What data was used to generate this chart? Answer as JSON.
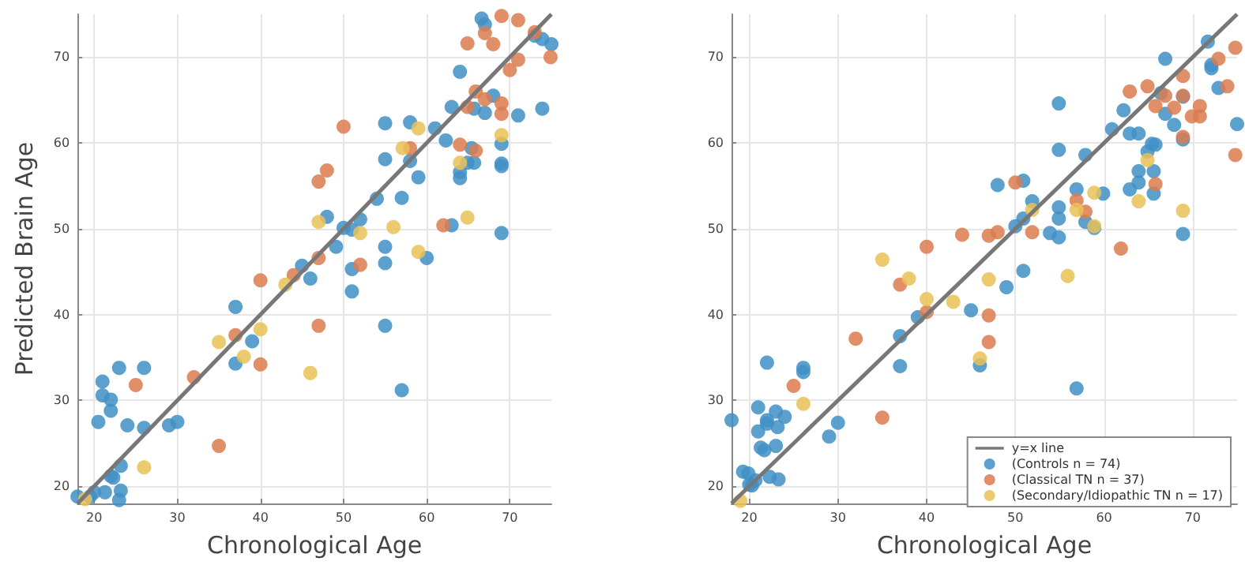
{
  "chart_data": [
    {
      "type": "scatter",
      "xlabel": "Chronological Age",
      "ylabel": "Predicted Brain Age",
      "xlim": [
        18,
        75
      ],
      "ylim": [
        18,
        75
      ],
      "xticks": [
        20,
        30,
        40,
        50,
        60,
        70
      ],
      "yticks": [
        20,
        30,
        40,
        50,
        60,
        70
      ],
      "grid": true,
      "legend": false,
      "marker": "circle",
      "series": [
        {
          "type": "line",
          "color": "#777777",
          "line_style": "solid",
          "marker": "none",
          "x": [
            18,
            75
          ],
          "values": [
            18,
            75
          ]
        },
        {
          "color": "#3f8fc5",
          "x": [
            66.6,
            67.0,
            73.0,
            73.9,
            75.0,
            64.0,
            63.0,
            65.7,
            67.0,
            68.0,
            71.0,
            73.9,
            55.0,
            58.0,
            61.0,
            62.3,
            69.0,
            55.0,
            58.0,
            64.9,
            65.7,
            69.0,
            69.0,
            65.4,
            64.0,
            64.0,
            59.0,
            57.0,
            54.0,
            48.0,
            50.0,
            51.0,
            52.0,
            63.0,
            69.0,
            49.1,
            55.0,
            60.0,
            55.0,
            51.0,
            45.0,
            46.0,
            51.0,
            55.0,
            57.0,
            37.0,
            39.0,
            37.0,
            23.0,
            26.0,
            21.0,
            21.0,
            22.0,
            22.0,
            20.5,
            24.0,
            26.0,
            29.0,
            30.0,
            23.2,
            22.0,
            22.3,
            21.3,
            23.2,
            20.0,
            18.0,
            19.5,
            23.0
          ],
          "values": [
            74.5,
            73.8,
            72.5,
            72.1,
            71.5,
            68.3,
            64.2,
            64.0,
            63.5,
            65.5,
            63.2,
            64.0,
            62.3,
            62.4,
            61.7,
            60.3,
            59.9,
            58.1,
            57.9,
            57.7,
            57.7,
            57.6,
            57.3,
            59.4,
            56.6,
            55.9,
            56.0,
            53.6,
            53.5,
            51.4,
            50.1,
            49.9,
            51.1,
            50.4,
            49.5,
            47.9,
            47.9,
            46.6,
            46.0,
            45.3,
            45.7,
            44.2,
            42.7,
            38.7,
            31.2,
            40.9,
            36.9,
            34.3,
            33.8,
            33.8,
            32.2,
            30.6,
            30.1,
            28.8,
            27.5,
            27.1,
            26.8,
            27.1,
            27.5,
            22.4,
            21.2,
            21.0,
            19.3,
            19.5,
            19.3,
            18.8,
            18.8,
            18.4
          ]
        },
        {
          "color": "#db7b4f",
          "x": [
            69.0,
            71.0,
            64.9,
            68.0,
            67.0,
            73.0,
            74.9,
            71.0,
            70.0,
            65.9,
            67.0,
            64.9,
            69.0,
            69.0,
            64.0,
            65.9,
            58.0,
            50.0,
            48.0,
            47.0,
            62.0,
            52.0,
            47.0,
            44.0,
            40.0,
            47.0,
            37.0,
            40.0,
            32.0,
            25.0,
            35.0
          ],
          "values": [
            74.8,
            74.3,
            71.6,
            71.5,
            72.8,
            72.9,
            70.0,
            69.7,
            68.5,
            66.0,
            65.1,
            64.2,
            64.6,
            63.4,
            59.8,
            59.1,
            59.4,
            61.9,
            56.8,
            55.5,
            50.4,
            45.8,
            46.6,
            44.6,
            44.0,
            38.7,
            37.6,
            34.2,
            32.7,
            31.8,
            24.7
          ]
        },
        {
          "color": "#e9c257",
          "x": [
            57.1,
            59.0,
            69.0,
            64.0,
            64.9,
            47.0,
            52.0,
            56.0,
            59.0,
            43.0,
            35.0,
            38.0,
            40.0,
            46.0,
            26.0,
            18.9
          ],
          "values": [
            59.4,
            61.7,
            60.9,
            57.7,
            51.3,
            50.8,
            49.5,
            50.2,
            47.3,
            43.5,
            36.8,
            35.1,
            38.3,
            33.2,
            22.2,
            18.5
          ]
        }
      ]
    },
    {
      "type": "scatter",
      "xlabel": "Chronological Age",
      "xlim": [
        18,
        75
      ],
      "ylim": [
        18,
        75
      ],
      "xticks": [
        20,
        30,
        40,
        50,
        60,
        70
      ],
      "yticks": [
        20,
        30,
        40,
        50,
        60,
        70
      ],
      "grid": true,
      "legend": "bottom right",
      "marker": "circle",
      "series": [
        {
          "type": "line",
          "name": "y=x line",
          "color": "#777777",
          "line_style": "solid",
          "marker": "none",
          "x": [
            18,
            75
          ],
          "values": [
            18,
            75
          ]
        },
        {
          "name": "(Controls n = 74)",
          "color": "#3f8fc5",
          "x": [
            71.7,
            66.9,
            72.1,
            72.1,
            72.9,
            75.0,
            68.9,
            68.9,
            66.9,
            67.9,
            66.4,
            62.2,
            60.9,
            62.9,
            63.9,
            65.4,
            65.8,
            64.9,
            54.9,
            54.9,
            57.9,
            63.9,
            65.6,
            63.9,
            62.9,
            65.6,
            59.9,
            56.9,
            48.0,
            50.9,
            51.9,
            54.9,
            54.9,
            57.9,
            58.9,
            50.0,
            50.9,
            53.9,
            54.9,
            68.9,
            50.9,
            49.0,
            45.0,
            39.0,
            37.0,
            37.0,
            46.0,
            56.9,
            22.0,
            26.1,
            26.1,
            21.0,
            23.0,
            24.0,
            18.0,
            22.0,
            22.0,
            23.2,
            21.0,
            30.0,
            29.0,
            21.3,
            21.7,
            23.0,
            19.3,
            19.9,
            22.3,
            23.3,
            20.7,
            20.3,
            20.0
          ],
          "values": [
            71.8,
            69.8,
            69.1,
            68.7,
            66.4,
            62.2,
            65.4,
            60.4,
            63.4,
            62.1,
            65.8,
            63.8,
            61.6,
            61.1,
            61.1,
            59.9,
            59.8,
            59.0,
            64.6,
            59.2,
            58.6,
            56.7,
            56.7,
            55.4,
            54.6,
            54.1,
            54.1,
            54.6,
            55.1,
            55.6,
            53.2,
            52.5,
            51.2,
            50.8,
            50.1,
            50.3,
            51.2,
            49.5,
            49.0,
            49.4,
            45.1,
            43.2,
            40.5,
            39.7,
            37.5,
            34.0,
            34.1,
            31.4,
            34.4,
            33.8,
            33.3,
            29.2,
            28.7,
            28.1,
            27.7,
            27.7,
            27.3,
            26.9,
            26.4,
            27.4,
            25.8,
            24.5,
            24.2,
            24.7,
            21.7,
            21.5,
            21.1,
            20.8,
            20.7,
            20.1,
            20.2
          ]
        },
        {
          "name": "(Classical TN n = 37)",
          "color": "#db7b4f",
          "x": [
            74.8,
            72.9,
            73.9,
            74.8,
            68.9,
            68.9,
            70.8,
            69.9,
            70.8,
            68.9,
            64.9,
            62.9,
            65.8,
            67.9,
            66.9,
            65.8,
            61.9,
            57.9,
            56.9,
            50.0,
            51.9,
            48.0,
            47.0,
            44.0,
            40.0,
            37.0,
            40.0,
            47.0,
            47.0,
            32.0,
            25.0,
            35.0
          ],
          "values": [
            71.1,
            69.8,
            66.6,
            58.6,
            67.8,
            65.5,
            64.3,
            63.1,
            63.1,
            60.7,
            66.6,
            66.0,
            64.3,
            64.1,
            65.5,
            55.2,
            47.7,
            52.0,
            53.3,
            55.4,
            49.6,
            49.6,
            49.2,
            49.3,
            47.9,
            43.5,
            40.3,
            39.9,
            36.8,
            37.2,
            31.7,
            28.0
          ]
        },
        {
          "name": "(Secondary/Idiopathic TN n = 17)",
          "color": "#e9c257",
          "x": [
            64.9,
            58.9,
            63.9,
            68.9,
            56.9,
            58.9,
            51.9,
            35.0,
            38.0,
            47.0,
            55.9,
            40.0,
            43.0,
            46.0,
            26.1,
            19.0
          ],
          "values": [
            58.0,
            54.2,
            53.2,
            52.1,
            52.2,
            50.3,
            52.2,
            46.4,
            44.2,
            44.1,
            44.5,
            41.8,
            41.5,
            34.9,
            29.6,
            18.3
          ]
        }
      ]
    }
  ]
}
